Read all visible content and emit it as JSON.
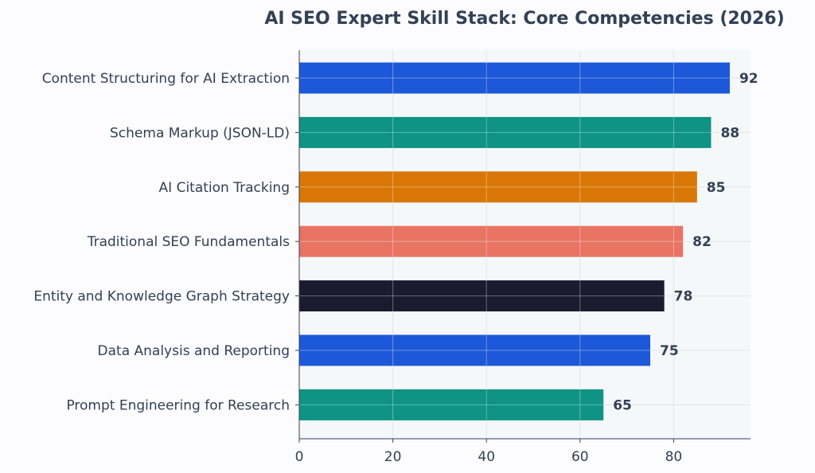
{
  "chart_data": {
    "type": "bar",
    "orientation": "horizontal",
    "title": "AI SEO Expert Skill Stack: Core Competencies (2026)",
    "xlabel": "",
    "ylabel": "",
    "xlim": [
      0,
      96
    ],
    "xticks": [
      0,
      20,
      40,
      60,
      80
    ],
    "grid": true,
    "categories": [
      "Content Structuring for AI Extraction",
      "Schema Markup (JSON-LD)",
      "AI Citation Tracking",
      "Traditional SEO Fundamentals",
      "Entity and Knowledge Graph Strategy",
      "Data Analysis and Reporting",
      "Prompt Engineering for Research"
    ],
    "values": [
      92,
      88,
      85,
      82,
      78,
      75,
      65
    ],
    "colors": [
      "#1d58d8",
      "#0e9384",
      "#d97706",
      "#e97464",
      "#1a1b2e",
      "#1d58d8",
      "#0e9384"
    ],
    "plot_background": "#f5f8f9",
    "text_color": "#334155",
    "grid_color": "#e2e6ea"
  }
}
